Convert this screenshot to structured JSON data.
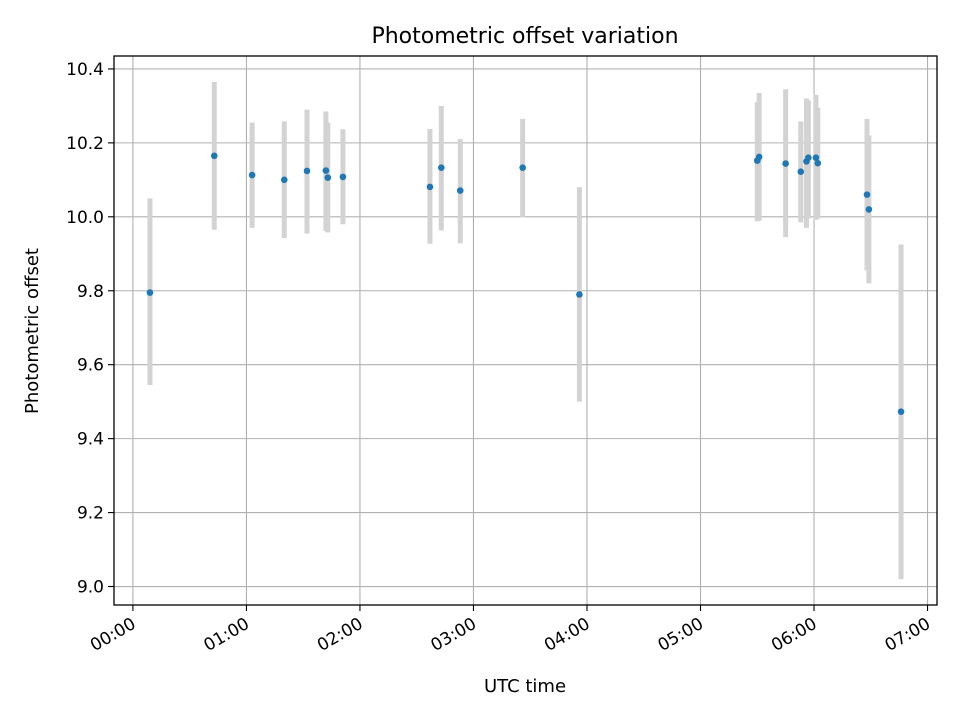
{
  "chart_data": {
    "type": "scatter",
    "title": "Photometric offset variation",
    "xlabel": "UTC time",
    "ylabel": "Photometric offset",
    "xlim": [
      "23:50",
      "07:05"
    ],
    "ylim": [
      8.95,
      10.435
    ],
    "x_ticks": [
      "00:00",
      "01:00",
      "02:00",
      "03:00",
      "04:00",
      "05:00",
      "06:00",
      "07:00"
    ],
    "y_ticks": [
      "9.0",
      "9.2",
      "9.4",
      "9.6",
      "9.8",
      "10.0",
      "10.2",
      "10.4"
    ],
    "grid": true,
    "legend": "none",
    "marker_color": "#1f77b4",
    "errorbar_color": "#d3d3d3",
    "points": [
      {
        "t": "00:09",
        "y": 9.795,
        "err_low": 9.545,
        "err_high": 10.05
      },
      {
        "t": "00:43",
        "y": 10.165,
        "err_low": 9.965,
        "err_high": 10.365
      },
      {
        "t": "01:03",
        "y": 10.113,
        "err_low": 9.97,
        "err_high": 10.255
      },
      {
        "t": "01:20",
        "y": 10.1,
        "err_low": 9.942,
        "err_high": 10.258
      },
      {
        "t": "01:32",
        "y": 10.124,
        "err_low": 9.955,
        "err_high": 10.29
      },
      {
        "t": "01:42",
        "y": 10.125,
        "err_low": 9.962,
        "err_high": 10.285
      },
      {
        "t": "01:43",
        "y": 10.106,
        "err_low": 9.958,
        "err_high": 10.255
      },
      {
        "t": "01:51",
        "y": 10.108,
        "err_low": 9.98,
        "err_high": 10.237
      },
      {
        "t": "02:37",
        "y": 10.081,
        "err_low": 9.927,
        "err_high": 10.238
      },
      {
        "t": "02:43",
        "y": 10.133,
        "err_low": 9.963,
        "err_high": 10.3
      },
      {
        "t": "02:53",
        "y": 10.071,
        "err_low": 9.928,
        "err_high": 10.21
      },
      {
        "t": "03:26",
        "y": 10.133,
        "err_low": 9.998,
        "err_high": 10.265
      },
      {
        "t": "03:56",
        "y": 9.79,
        "err_low": 9.5,
        "err_high": 10.08
      },
      {
        "t": "05:30",
        "y": 10.152,
        "err_low": 9.988,
        "err_high": 10.31
      },
      {
        "t": "05:31",
        "y": 10.162,
        "err_low": 9.99,
        "err_high": 10.335
      },
      {
        "t": "05:45",
        "y": 10.144,
        "err_low": 9.945,
        "err_high": 10.345
      },
      {
        "t": "05:53",
        "y": 10.122,
        "err_low": 9.985,
        "err_high": 10.258
      },
      {
        "t": "05:56",
        "y": 10.15,
        "err_low": 9.97,
        "err_high": 10.32
      },
      {
        "t": "05:57",
        "y": 10.16,
        "err_low": 9.995,
        "err_high": 10.315
      },
      {
        "t": "06:01",
        "y": 10.16,
        "err_low": 9.992,
        "err_high": 10.33
      },
      {
        "t": "06:02",
        "y": 10.145,
        "err_low": 9.995,
        "err_high": 10.295
      },
      {
        "t": "06:28",
        "y": 10.06,
        "err_low": 9.855,
        "err_high": 10.265
      },
      {
        "t": "06:29",
        "y": 10.02,
        "err_low": 9.82,
        "err_high": 10.22
      },
      {
        "t": "06:46",
        "y": 9.473,
        "err_low": 9.02,
        "err_high": 9.925
      }
    ]
  }
}
